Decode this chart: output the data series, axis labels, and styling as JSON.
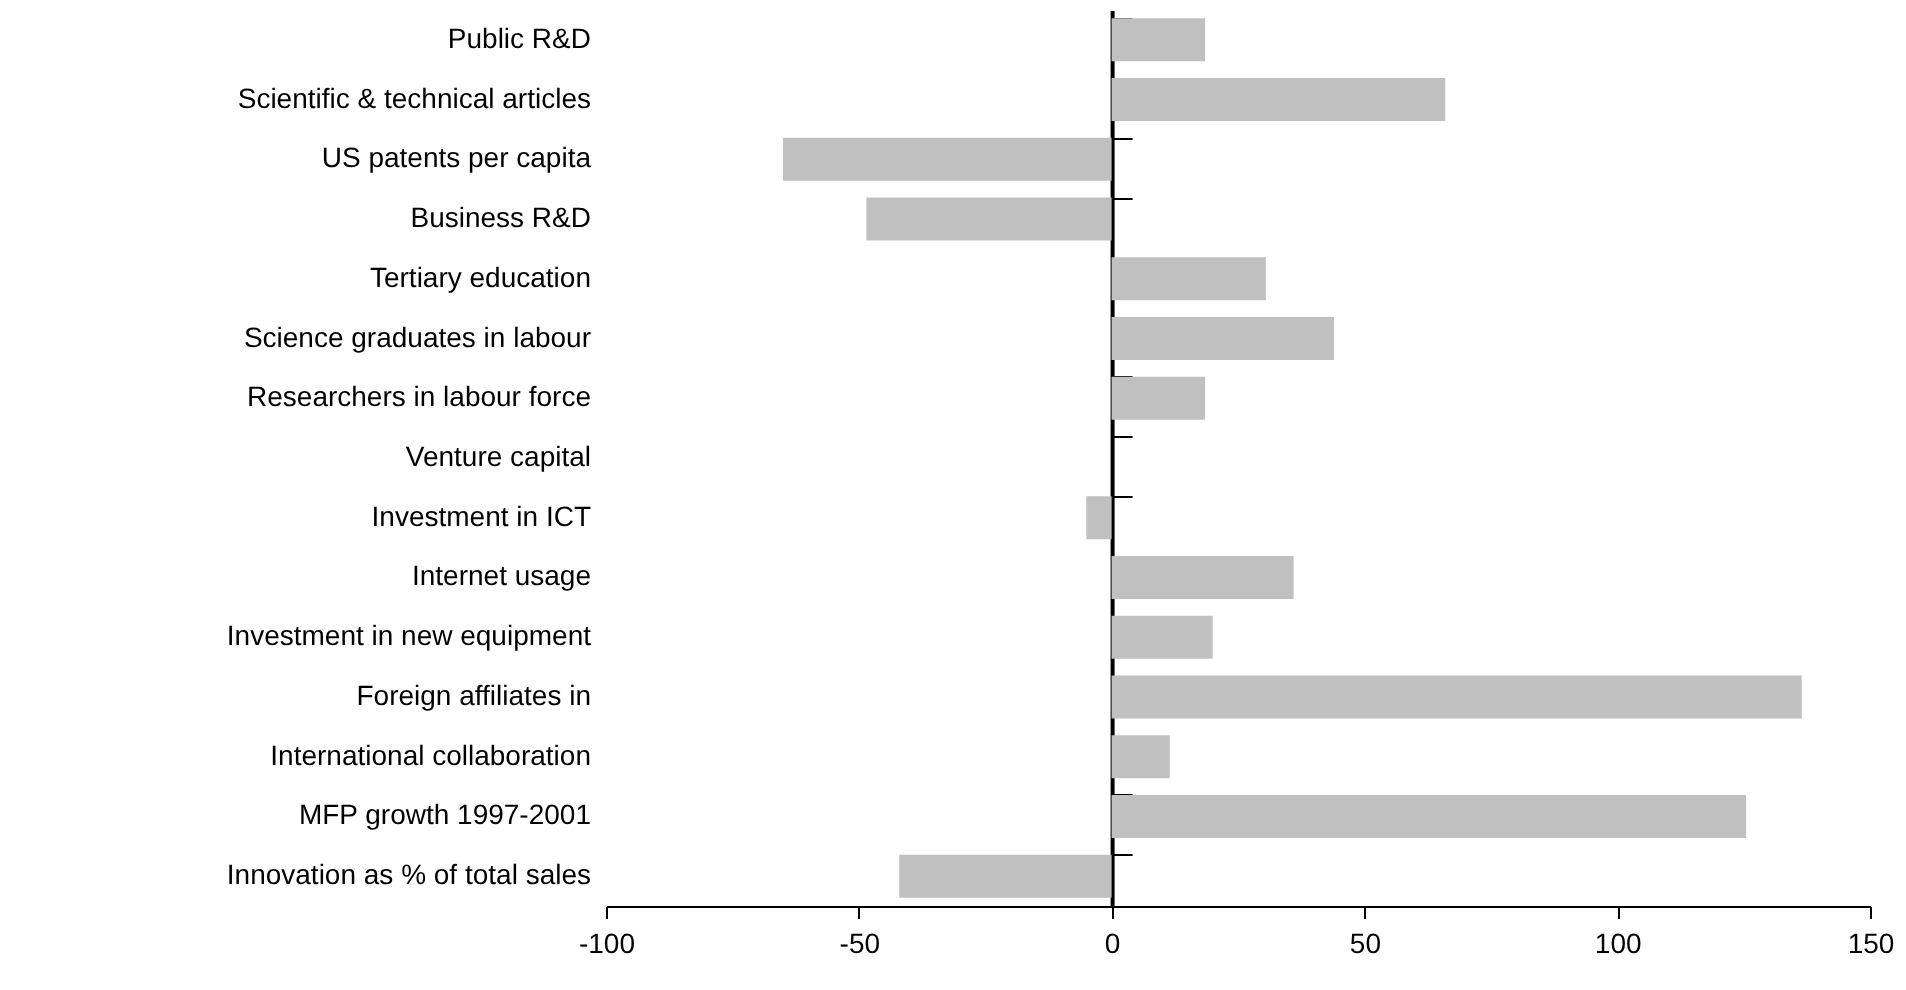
{
  "chart_data": {
    "type": "bar",
    "orientation": "horizontal",
    "categories": [
      "Public R&D",
      "Scientific & technical articles",
      "US patents per capita",
      "Business R&D",
      "Tertiary education",
      "Science graduates in labour",
      "Researchers in labour force",
      "Venture capital",
      "Investment in ICT",
      "Internet usage",
      "Investment in new equipment",
      "Foreign affiliates in",
      "International collaboration",
      "MFP growth 1997-2001",
      "Innovation as % of total sales"
    ],
    "values": [
      18.5,
      66,
      -65,
      -48.5,
      30.5,
      44,
      18.5,
      null,
      -5,
      36,
      20,
      136.5,
      11.5,
      125.5,
      -42
    ],
    "color": "#c0c0c0",
    "xlim": [
      -100,
      150
    ],
    "xticks": [
      -100,
      -50,
      0,
      50,
      100,
      150
    ]
  }
}
